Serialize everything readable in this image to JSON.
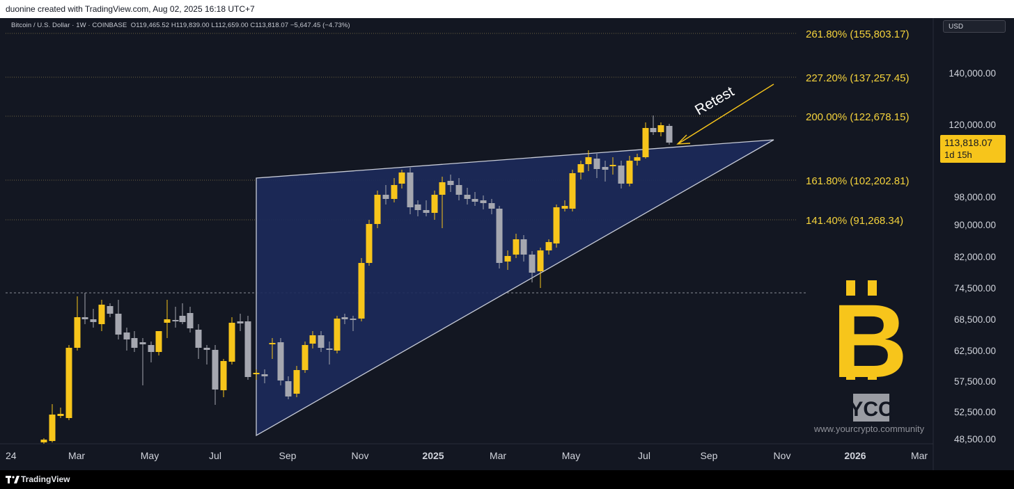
{
  "header": {
    "caption": "duonine created with TradingView.com, Aug 02, 2025 16:18 UTC+7"
  },
  "chart": {
    "symbol": "Bitcoin / U.S. Dollar · 1W · COINBASE",
    "ohlc": "O119,465.52  H119,839.00  L112,659.00  C113,818.07  −5,647.45 (−4.73%)",
    "currency_button": "USD",
    "price_axis": [
      "140,000.00",
      "120,000.00",
      "98,000.00",
      "90,000.00",
      "82,000.00",
      "74,500.00",
      "68,500.00",
      "62,500.00",
      "57,500.00",
      "52,500.00",
      "48,500.00"
    ],
    "last_price": {
      "value": "113,818.07",
      "countdown": "1d 15h"
    },
    "time_axis": [
      "24",
      "Mar",
      "May",
      "Jul",
      "Sep",
      "Nov",
      "2025",
      "Mar",
      "May",
      "Jul",
      "Sep",
      "Nov",
      "2026",
      "Mar"
    ],
    "fib_levels": [
      {
        "label": "261.80% (155,803.17)"
      },
      {
        "label": "227.20% (137,257.45)"
      },
      {
        "label": "200.00% (122,678.15)"
      },
      {
        "label": "161.80% (102,202.81)"
      },
      {
        "label": "141.40% (91,268.34)"
      }
    ],
    "annotation": "Retest",
    "watermark": {
      "logo": "YCC",
      "site": "www.yourcrypto.community"
    },
    "colors": {
      "background": "#131722",
      "up": "#f7c51b",
      "down": "#a5a7b0",
      "triangle_fill": "#1c2a5a",
      "fib_text": "#f5d33c",
      "btc": "#f7c51b"
    }
  },
  "footer": {
    "brand": "TradingView"
  }
}
